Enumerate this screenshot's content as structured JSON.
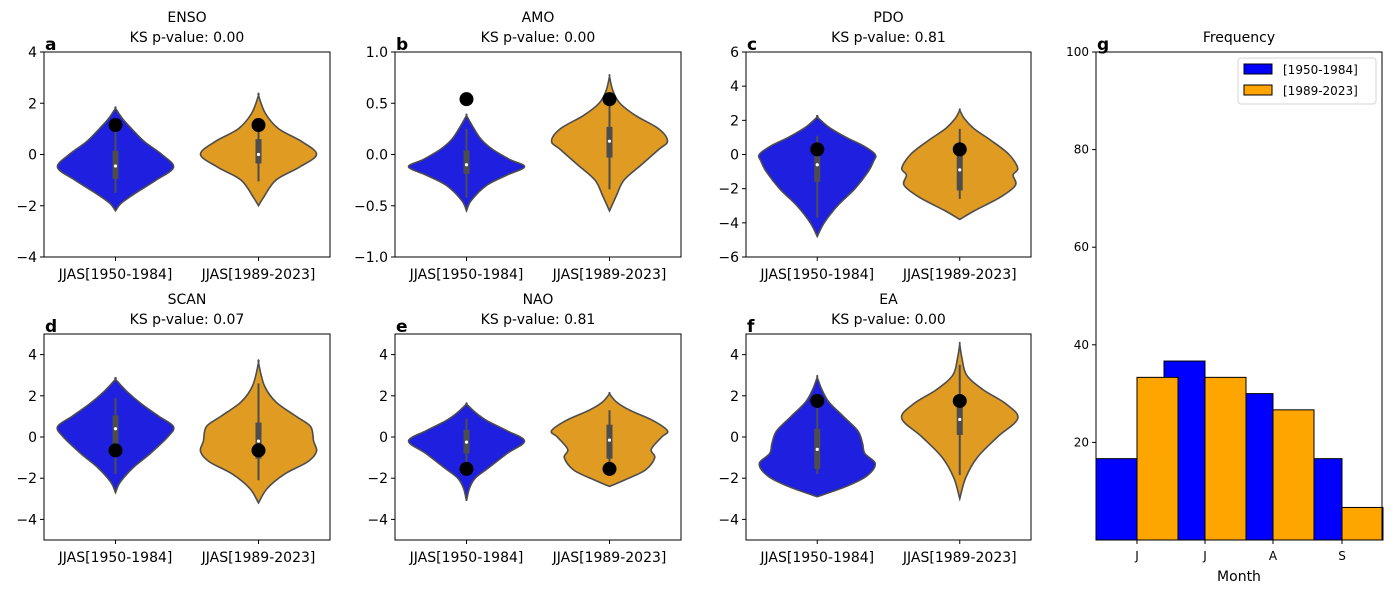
{
  "colors": {
    "period1": "#1f1fe0",
    "period2": "#e09b22",
    "bar1": "#0000ff",
    "bar2": "#ffa500",
    "outline": "#4d4d4d",
    "marker": "#000000"
  },
  "chart_data": [
    {
      "type": "violin",
      "panel": "a",
      "title": "ENSO",
      "subtitle": "KS p-value: 0.00",
      "ylim": [
        -4,
        4
      ],
      "yticks": [
        "4",
        "2",
        "0",
        "−2",
        "−4"
      ],
      "ytick_values": [
        4,
        2,
        0,
        -2,
        -4
      ],
      "categories": [
        "JJAS[1950-1984]",
        "JJAS[1989-2023]"
      ],
      "violins": [
        {
          "name": "JJAS[1950-1984]",
          "min": -2.2,
          "max": 1.8,
          "q1": -0.95,
          "median": -0.45,
          "q3": 0.15,
          "whisker_low": -1.5,
          "whisker_high": 1.15,
          "highlight": 1.15,
          "profile": [
            [
              -2.2,
              0
            ],
            [
              -1.9,
              0.1
            ],
            [
              -1.5,
              0.35
            ],
            [
              -1.0,
              0.7
            ],
            [
              -0.5,
              1.0
            ],
            [
              0,
              0.8
            ],
            [
              0.5,
              0.5
            ],
            [
              1.0,
              0.28
            ],
            [
              1.4,
              0.12
            ],
            [
              1.8,
              0
            ]
          ]
        },
        {
          "name": "JJAS[1989-2023]",
          "min": -2.0,
          "max": 2.3,
          "q1": -0.35,
          "median": 0.0,
          "q3": 0.6,
          "whisker_low": -1.05,
          "whisker_high": 1.1,
          "highlight": 1.15,
          "profile": [
            [
              -2.0,
              0
            ],
            [
              -1.7,
              0.08
            ],
            [
              -1.0,
              0.3
            ],
            [
              -0.5,
              0.7
            ],
            [
              0,
              1.0
            ],
            [
              0.5,
              0.75
            ],
            [
              1.0,
              0.35
            ],
            [
              1.6,
              0.12
            ],
            [
              2.3,
              0
            ]
          ]
        }
      ]
    },
    {
      "type": "violin",
      "panel": "b",
      "title": "AMO",
      "subtitle": "KS p-value: 0.00",
      "ylim": [
        -1.0,
        1.0
      ],
      "yticks": [
        "1.0",
        "0.5",
        "0.0",
        "−0.5",
        "−1.0"
      ],
      "ytick_values": [
        1.0,
        0.5,
        0.0,
        -0.5,
        -1.0
      ],
      "categories": [
        "JJAS[1950-1984]",
        "JJAS[1989-2023]"
      ],
      "violins": [
        {
          "name": "JJAS[1950-1984]",
          "min": -0.55,
          "max": 0.38,
          "q1": -0.19,
          "median": -0.1,
          "q3": 0.04,
          "whisker_low": -0.42,
          "whisker_high": 0.25,
          "highlight": 0.54,
          "profile": [
            [
              -0.55,
              0
            ],
            [
              -0.45,
              0.08
            ],
            [
              -0.3,
              0.35
            ],
            [
              -0.2,
              0.7
            ],
            [
              -0.12,
              1.0
            ],
            [
              -0.05,
              0.75
            ],
            [
              0.05,
              0.45
            ],
            [
              0.15,
              0.25
            ],
            [
              0.28,
              0.1
            ],
            [
              0.38,
              0
            ]
          ]
        },
        {
          "name": "JJAS[1989-2023]",
          "min": -0.55,
          "max": 0.76,
          "q1": -0.03,
          "median": 0.13,
          "q3": 0.27,
          "whisker_low": -0.34,
          "whisker_high": 0.5,
          "highlight": 0.54,
          "profile": [
            [
              -0.55,
              0
            ],
            [
              -0.4,
              0.12
            ],
            [
              -0.25,
              0.25
            ],
            [
              -0.1,
              0.55
            ],
            [
              0.05,
              0.85
            ],
            [
              0.13,
              1.0
            ],
            [
              0.25,
              0.85
            ],
            [
              0.38,
              0.45
            ],
            [
              0.5,
              0.18
            ],
            [
              0.62,
              0.06
            ],
            [
              0.76,
              0
            ]
          ]
        }
      ]
    },
    {
      "type": "violin",
      "panel": "c",
      "title": "PDO",
      "subtitle": "KS p-value: 0.81",
      "ylim": [
        -6,
        6
      ],
      "yticks": [
        "6",
        "4",
        "2",
        "0",
        "−2",
        "−4",
        "−6"
      ],
      "ytick_values": [
        6,
        4,
        2,
        0,
        -2,
        -4,
        -6
      ],
      "categories": [
        "JJAS[1950-1984]",
        "JJAS[1989-2023]"
      ],
      "violins": [
        {
          "name": "JJAS[1950-1984]",
          "min": -4.8,
          "max": 2.2,
          "q1": -1.6,
          "median": -0.6,
          "q3": 0.3,
          "whisker_low": -3.7,
          "whisker_high": 1.1,
          "highlight": 0.3,
          "profile": [
            [
              -4.8,
              0
            ],
            [
              -4.0,
              0.12
            ],
            [
              -3.0,
              0.35
            ],
            [
              -2.0,
              0.65
            ],
            [
              -1.0,
              0.88
            ],
            [
              -0.4,
              0.97
            ],
            [
              0,
              1.0
            ],
            [
              0.5,
              0.8
            ],
            [
              1.0,
              0.5
            ],
            [
              1.6,
              0.2
            ],
            [
              2.2,
              0
            ]
          ]
        },
        {
          "name": "JJAS[1989-2023]",
          "min": -3.8,
          "max": 2.6,
          "q1": -2.1,
          "median": -0.9,
          "q3": 0.2,
          "whisker_low": -2.6,
          "whisker_high": 1.5,
          "highlight": 0.3,
          "profile": [
            [
              -3.8,
              0
            ],
            [
              -3.3,
              0.25
            ],
            [
              -2.5,
              0.7
            ],
            [
              -1.8,
              0.96
            ],
            [
              -1.2,
              0.92
            ],
            [
              -0.8,
              1.0
            ],
            [
              0,
              0.85
            ],
            [
              0.8,
              0.55
            ],
            [
              1.5,
              0.25
            ],
            [
              2.1,
              0.08
            ],
            [
              2.6,
              0
            ]
          ]
        }
      ]
    },
    {
      "type": "violin",
      "panel": "d",
      "title": "SCAN",
      "subtitle": "KS p-value: 0.07",
      "ylim": [
        -5,
        5
      ],
      "yticks": [
        "4",
        "2",
        "0",
        "−2",
        "−4"
      ],
      "ytick_values": [
        4,
        2,
        0,
        -2,
        -4
      ],
      "categories": [
        "JJAS[1950-1984]",
        "JJAS[1989-2023]"
      ],
      "violins": [
        {
          "name": "JJAS[1950-1984]",
          "min": -2.7,
          "max": 2.8,
          "q1": -0.35,
          "median": 0.4,
          "q3": 1.05,
          "whisker_low": -1.8,
          "whisker_high": 1.9,
          "highlight": -0.65,
          "profile": [
            [
              -2.7,
              0
            ],
            [
              -2.2,
              0.08
            ],
            [
              -1.5,
              0.3
            ],
            [
              -0.8,
              0.6
            ],
            [
              0,
              0.9
            ],
            [
              0.5,
              1.0
            ],
            [
              1.0,
              0.75
            ],
            [
              1.6,
              0.45
            ],
            [
              2.2,
              0.2
            ],
            [
              2.8,
              0
            ]
          ]
        },
        {
          "name": "JJAS[1989-2023]",
          "min": -3.2,
          "max": 3.6,
          "q1": -1.05,
          "median": -0.2,
          "q3": 0.7,
          "whisker_low": -2.1,
          "whisker_high": 2.6,
          "highlight": -0.65,
          "profile": [
            [
              -3.2,
              0
            ],
            [
              -2.5,
              0.15
            ],
            [
              -1.8,
              0.45
            ],
            [
              -1.2,
              0.85
            ],
            [
              -0.7,
              1.0
            ],
            [
              -0.2,
              0.95
            ],
            [
              0.5,
              0.9
            ],
            [
              1.0,
              0.65
            ],
            [
              1.7,
              0.3
            ],
            [
              2.5,
              0.1
            ],
            [
              3.6,
              0
            ]
          ]
        }
      ]
    },
    {
      "type": "violin",
      "panel": "e",
      "title": "NAO",
      "subtitle": "KS p-value: 0.81",
      "ylim": [
        -5,
        5
      ],
      "yticks": [
        "4",
        "2",
        "0",
        "−2",
        "−4"
      ],
      "ytick_values": [
        4,
        2,
        0,
        -2,
        -4
      ],
      "categories": [
        "JJAS[1950-1984]",
        "JJAS[1989-2023]"
      ],
      "violins": [
        {
          "name": "JJAS[1950-1984]",
          "min": -3.1,
          "max": 1.6,
          "q1": -0.8,
          "median": -0.25,
          "q3": 0.35,
          "whisker_low": -1.3,
          "whisker_high": 0.9,
          "highlight": -1.55,
          "profile": [
            [
              -3.1,
              0
            ],
            [
              -2.5,
              0.05
            ],
            [
              -2.0,
              0.15
            ],
            [
              -1.5,
              0.38
            ],
            [
              -0.8,
              0.7
            ],
            [
              -0.2,
              1.0
            ],
            [
              0.3,
              0.7
            ],
            [
              0.8,
              0.35
            ],
            [
              1.2,
              0.15
            ],
            [
              1.6,
              0
            ]
          ]
        },
        {
          "name": "JJAS[1989-2023]",
          "min": -2.4,
          "max": 2.1,
          "q1": -1.05,
          "median": -0.15,
          "q3": 0.6,
          "whisker_low": -1.55,
          "whisker_high": 1.3,
          "highlight": -1.55,
          "profile": [
            [
              -2.4,
              0
            ],
            [
              -2.1,
              0.25
            ],
            [
              -1.6,
              0.62
            ],
            [
              -1.0,
              0.78
            ],
            [
              -0.6,
              0.72
            ],
            [
              0,
              0.9
            ],
            [
              0.3,
              1.0
            ],
            [
              0.8,
              0.75
            ],
            [
              1.3,
              0.35
            ],
            [
              1.7,
              0.12
            ],
            [
              2.1,
              0
            ]
          ]
        }
      ]
    },
    {
      "type": "violin",
      "panel": "f",
      "title": "EA",
      "subtitle": "KS p-value: 0.00",
      "ylim": [
        -5,
        5
      ],
      "yticks": [
        "4",
        "2",
        "0",
        "−2",
        "−4"
      ],
      "ytick_values": [
        4,
        2,
        0,
        -2,
        -4
      ],
      "categories": [
        "JJAS[1950-1984]",
        "JJAS[1989-2023]"
      ],
      "violins": [
        {
          "name": "JJAS[1950-1984]",
          "min": -2.9,
          "max": 2.9,
          "q1": -1.55,
          "median": -0.6,
          "q3": 0.4,
          "whisker_low": -1.8,
          "whisker_high": 1.75,
          "highlight": 1.75,
          "profile": [
            [
              -2.9,
              0
            ],
            [
              -2.4,
              0.5
            ],
            [
              -1.9,
              0.85
            ],
            [
              -1.3,
              1.0
            ],
            [
              -0.8,
              0.82
            ],
            [
              -0.3,
              0.78
            ],
            [
              0.3,
              0.7
            ],
            [
              1.0,
              0.45
            ],
            [
              1.7,
              0.2
            ],
            [
              2.3,
              0.08
            ],
            [
              2.9,
              0
            ]
          ]
        },
        {
          "name": "JJAS[1989-2023]",
          "min": -3.0,
          "max": 4.5,
          "q1": 0.1,
          "median": 0.85,
          "q3": 1.6,
          "whisker_low": -1.85,
          "whisker_high": 3.5,
          "highlight": 1.75,
          "profile": [
            [
              -3.0,
              0
            ],
            [
              -2.0,
              0.1
            ],
            [
              -1.0,
              0.3
            ],
            [
              0,
              0.65
            ],
            [
              0.9,
              1.0
            ],
            [
              1.6,
              0.8
            ],
            [
              2.3,
              0.4
            ],
            [
              3.0,
              0.12
            ],
            [
              3.8,
              0.04
            ],
            [
              4.5,
              0
            ]
          ]
        }
      ]
    },
    {
      "type": "bar",
      "panel": "g",
      "title": "Frequency",
      "xlabel": "Month",
      "ylabel": "",
      "ylim": [
        0,
        100
      ],
      "yticks": [
        "100",
        "80",
        "60",
        "40",
        "20"
      ],
      "ytick_values": [
        100,
        80,
        60,
        40,
        20
      ],
      "categories": [
        "J",
        "J",
        "A",
        "S"
      ],
      "legend_position": "top-right",
      "series": [
        {
          "name": "[1950-1984]",
          "values": [
            16.67,
            36.67,
            30.0,
            16.67
          ]
        },
        {
          "name": "[1989-2023]",
          "values": [
            33.33,
            33.33,
            26.67,
            6.67
          ]
        }
      ]
    }
  ]
}
